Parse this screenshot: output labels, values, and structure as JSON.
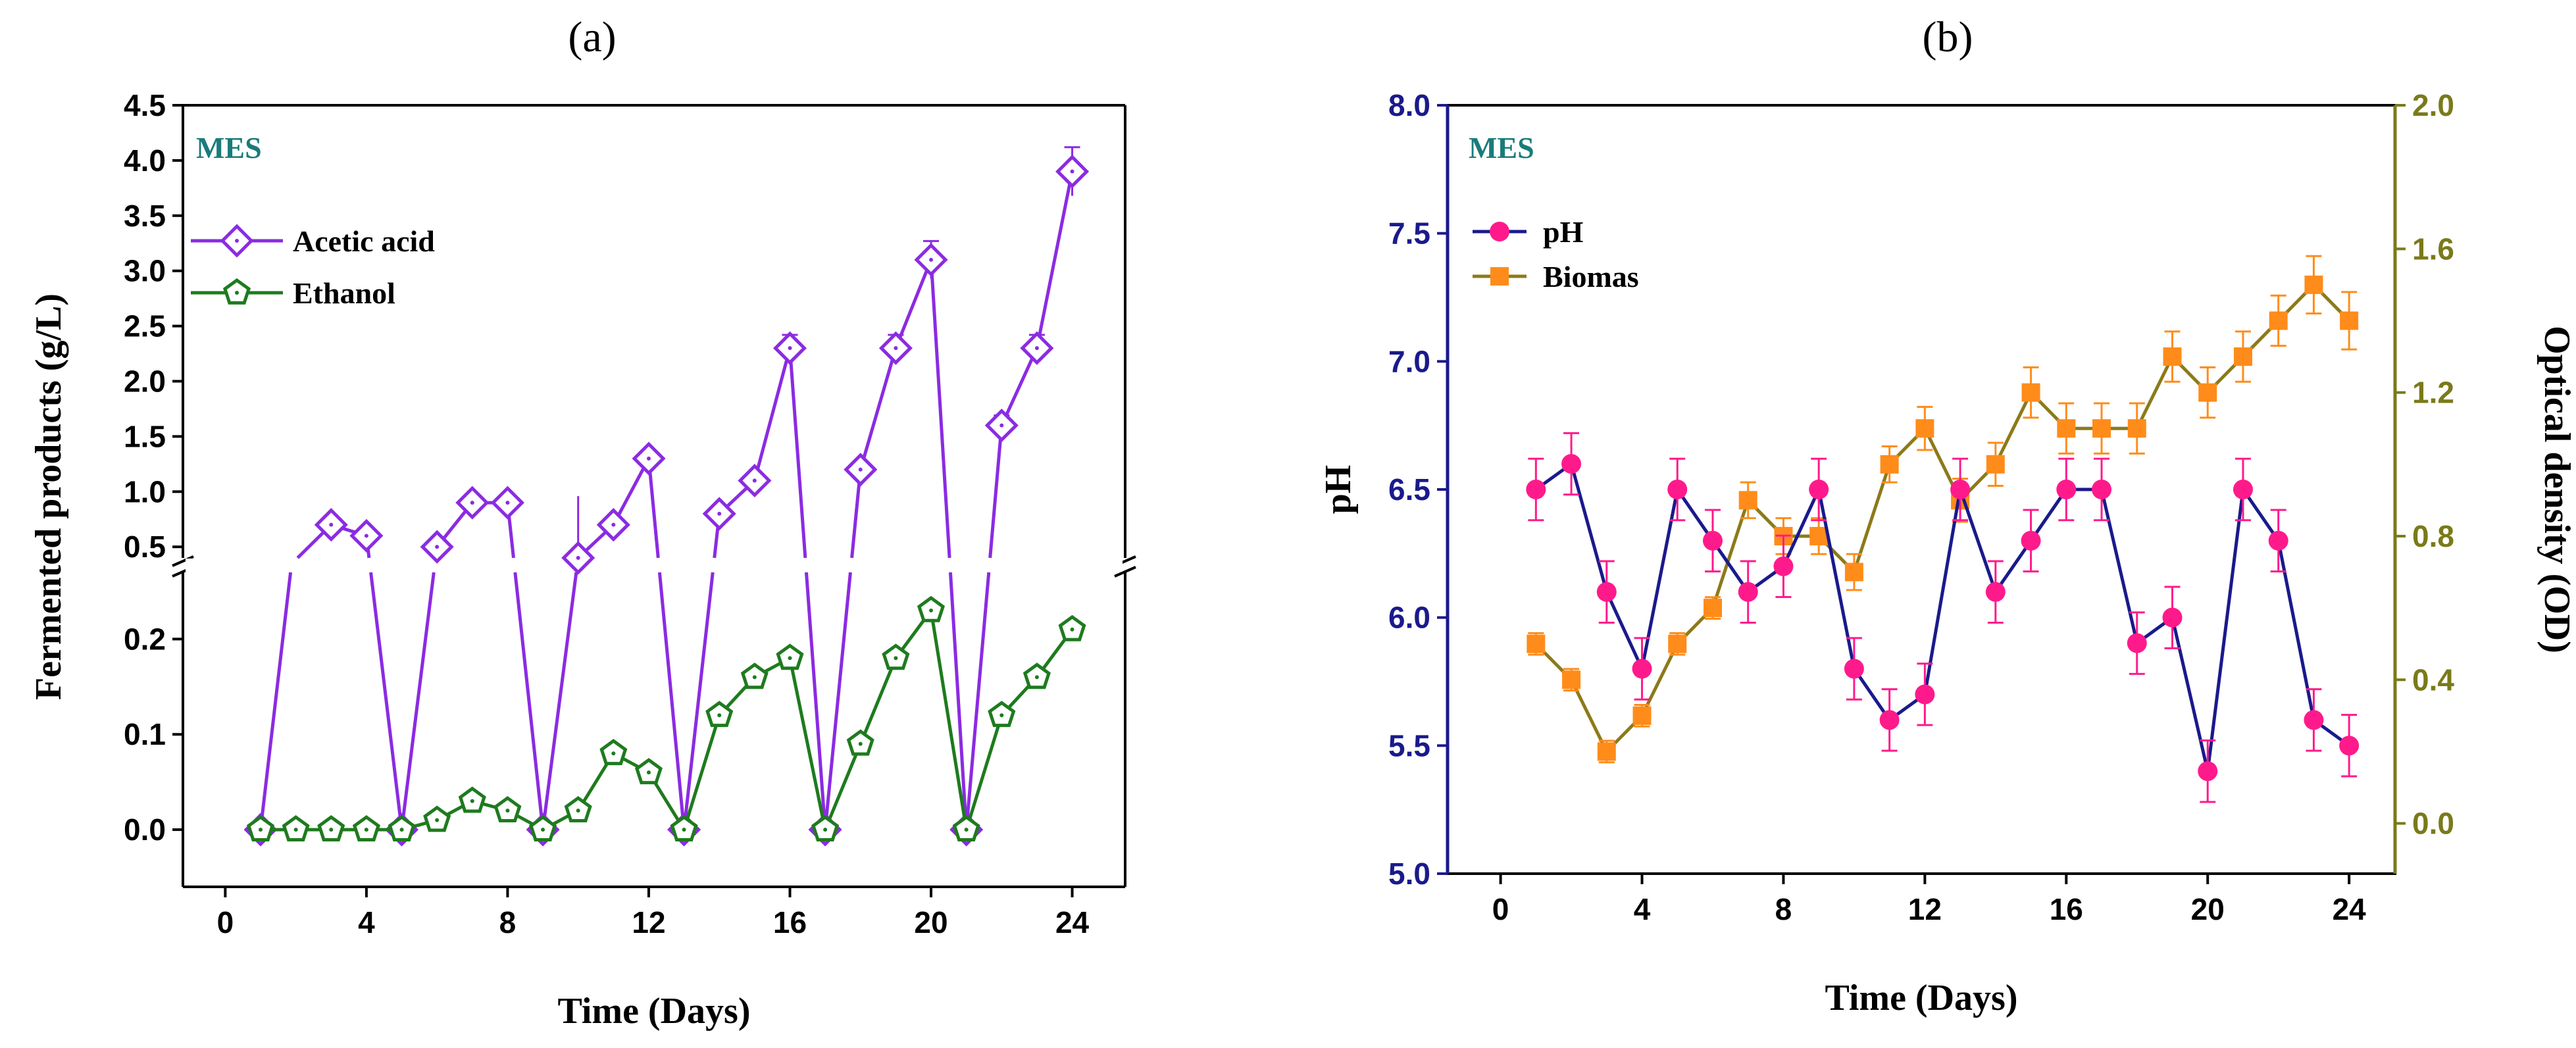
{
  "chart_data": [
    {
      "type": "line",
      "panel_label": "(a)",
      "annotation": "MES",
      "xlabel": "Time (Days)",
      "ylabel": "Fermented products (g/L)",
      "x_ticks": [
        "0",
        "4",
        "8",
        "12",
        "16",
        "20",
        "24"
      ],
      "xlim": [
        -1.2,
        25.5
      ],
      "y_lower_ticks": [
        "0.0",
        "0.1",
        "0.2"
      ],
      "y_upper_ticks": [
        "0.5",
        "1.0",
        "1.5",
        "2.0",
        "2.5",
        "3.0",
        "3.5",
        "4.0",
        "4.5"
      ],
      "y_lower_range": [
        -0.06,
        0.27
      ],
      "y_upper_range": [
        0.4,
        4.5
      ],
      "axis_break": "0.27 / 0.4",
      "legend_position": "upper-left",
      "colors": {
        "acetic": "#8b2be2",
        "ethanol": "#1e7b1e",
        "annotation": "#1a7b7b"
      },
      "series": [
        {
          "name": "Acetic acid",
          "marker": "diamond",
          "x": [
            1,
            2,
            3,
            4,
            5,
            6,
            7,
            8,
            9,
            10,
            11,
            12,
            13,
            14,
            15,
            16,
            17,
            18,
            19,
            20,
            21,
            22,
            23,
            24
          ],
          "values": [
            0,
            null,
            0.7,
            0.6,
            0,
            0.5,
            0.9,
            0.9,
            0,
            0.4,
            0.7,
            1.3,
            0,
            0.8,
            1.1,
            2.3,
            0,
            1.2,
            2.3,
            3.1,
            0,
            1.6,
            2.3,
            3.9
          ],
          "errors": [
            0,
            0,
            0.05,
            0.05,
            0,
            0.05,
            0.06,
            0.06,
            0,
            0.05,
            0.06,
            0.07,
            0,
            0.07,
            0.07,
            0.12,
            0,
            0.07,
            0.12,
            0.17,
            0,
            0.09,
            0.12,
            0.22
          ]
        },
        {
          "name": "Ethanol",
          "marker": "pentagon",
          "x": [
            1,
            2,
            3,
            4,
            5,
            6,
            7,
            8,
            9,
            10,
            11,
            12,
            13,
            14,
            15,
            16,
            17,
            18,
            19,
            20,
            21,
            22,
            23,
            24
          ],
          "values": [
            0,
            0,
            0,
            0,
            0,
            0.01,
            0.03,
            0.02,
            0,
            0.02,
            0.08,
            0.06,
            0,
            0.12,
            0.16,
            0.18,
            0,
            0.09,
            0.18,
            0.23,
            0,
            0.12,
            0.16,
            0.21
          ]
        }
      ]
    },
    {
      "type": "line",
      "panel_label": "(b)",
      "annotation": "MES",
      "xlabel": "Time (Days)",
      "ylabel_left": "pH",
      "ylabel_right": "Optical density (OD)",
      "x_ticks": [
        "0",
        "4",
        "8",
        "12",
        "16",
        "20",
        "24"
      ],
      "xlim": [
        -1.5,
        25.3
      ],
      "y_left_ticks": [
        "5.0",
        "5.5",
        "6.0",
        "6.5",
        "7.0",
        "7.5",
        "8.0"
      ],
      "y_left_range": [
        5.0,
        8.0
      ],
      "y_right_ticks": [
        "0.0",
        "0.4",
        "0.8",
        "1.2",
        "1.6",
        "2.0"
      ],
      "y_right_range": [
        -0.14,
        2.0
      ],
      "legend_position": "upper-left",
      "colors": {
        "pH_line": "#1a1a8c",
        "pH_marker": "#ff1a8c",
        "biomas_line": "#8c7a1a",
        "biomas_marker": "#ff8c1a",
        "left_axis": "#1a1a8c",
        "right_axis": "#7a7a1a",
        "annotation": "#1a7b7b"
      },
      "series": [
        {
          "name": "pH",
          "axis": "left",
          "marker": "circle",
          "x": [
            1,
            2,
            3,
            4,
            5,
            6,
            7,
            8,
            9,
            10,
            11,
            12,
            13,
            14,
            15,
            16,
            17,
            18,
            19,
            20,
            21,
            22,
            23,
            24
          ],
          "values": [
            6.5,
            6.6,
            6.1,
            5.8,
            6.5,
            6.3,
            6.1,
            6.2,
            6.5,
            5.8,
            5.6,
            5.7,
            6.5,
            6.1,
            6.3,
            6.5,
            6.5,
            5.9,
            6.0,
            5.4,
            6.5,
            6.3,
            5.6,
            5.5
          ],
          "errors": [
            0.12,
            0.12,
            0.12,
            0.12,
            0.12,
            0.12,
            0.12,
            0.12,
            0.12,
            0.12,
            0.12,
            0.12,
            0.12,
            0.12,
            0.12,
            0.12,
            0.12,
            0.12,
            0.12,
            0.12,
            0.12,
            0.12,
            0.12,
            0.12
          ]
        },
        {
          "name": "Biomas",
          "axis": "right",
          "marker": "square",
          "x": [
            1,
            2,
            3,
            4,
            5,
            6,
            7,
            8,
            9,
            10,
            11,
            12,
            13,
            14,
            15,
            16,
            17,
            18,
            19,
            20,
            21,
            22,
            23,
            24
          ],
          "values": [
            0.5,
            0.4,
            0.2,
            0.3,
            0.5,
            0.6,
            0.9,
            0.8,
            0.8,
            0.7,
            1.0,
            1.1,
            0.9,
            1.0,
            1.2,
            1.1,
            1.1,
            1.1,
            1.3,
            1.2,
            1.3,
            1.4,
            1.5,
            1.4
          ],
          "errors": [
            0.03,
            0.03,
            0.03,
            0.03,
            0.03,
            0.03,
            0.05,
            0.05,
            0.05,
            0.05,
            0.05,
            0.06,
            0.06,
            0.06,
            0.07,
            0.07,
            0.07,
            0.07,
            0.07,
            0.07,
            0.07,
            0.07,
            0.08,
            0.08
          ]
        }
      ]
    }
  ]
}
